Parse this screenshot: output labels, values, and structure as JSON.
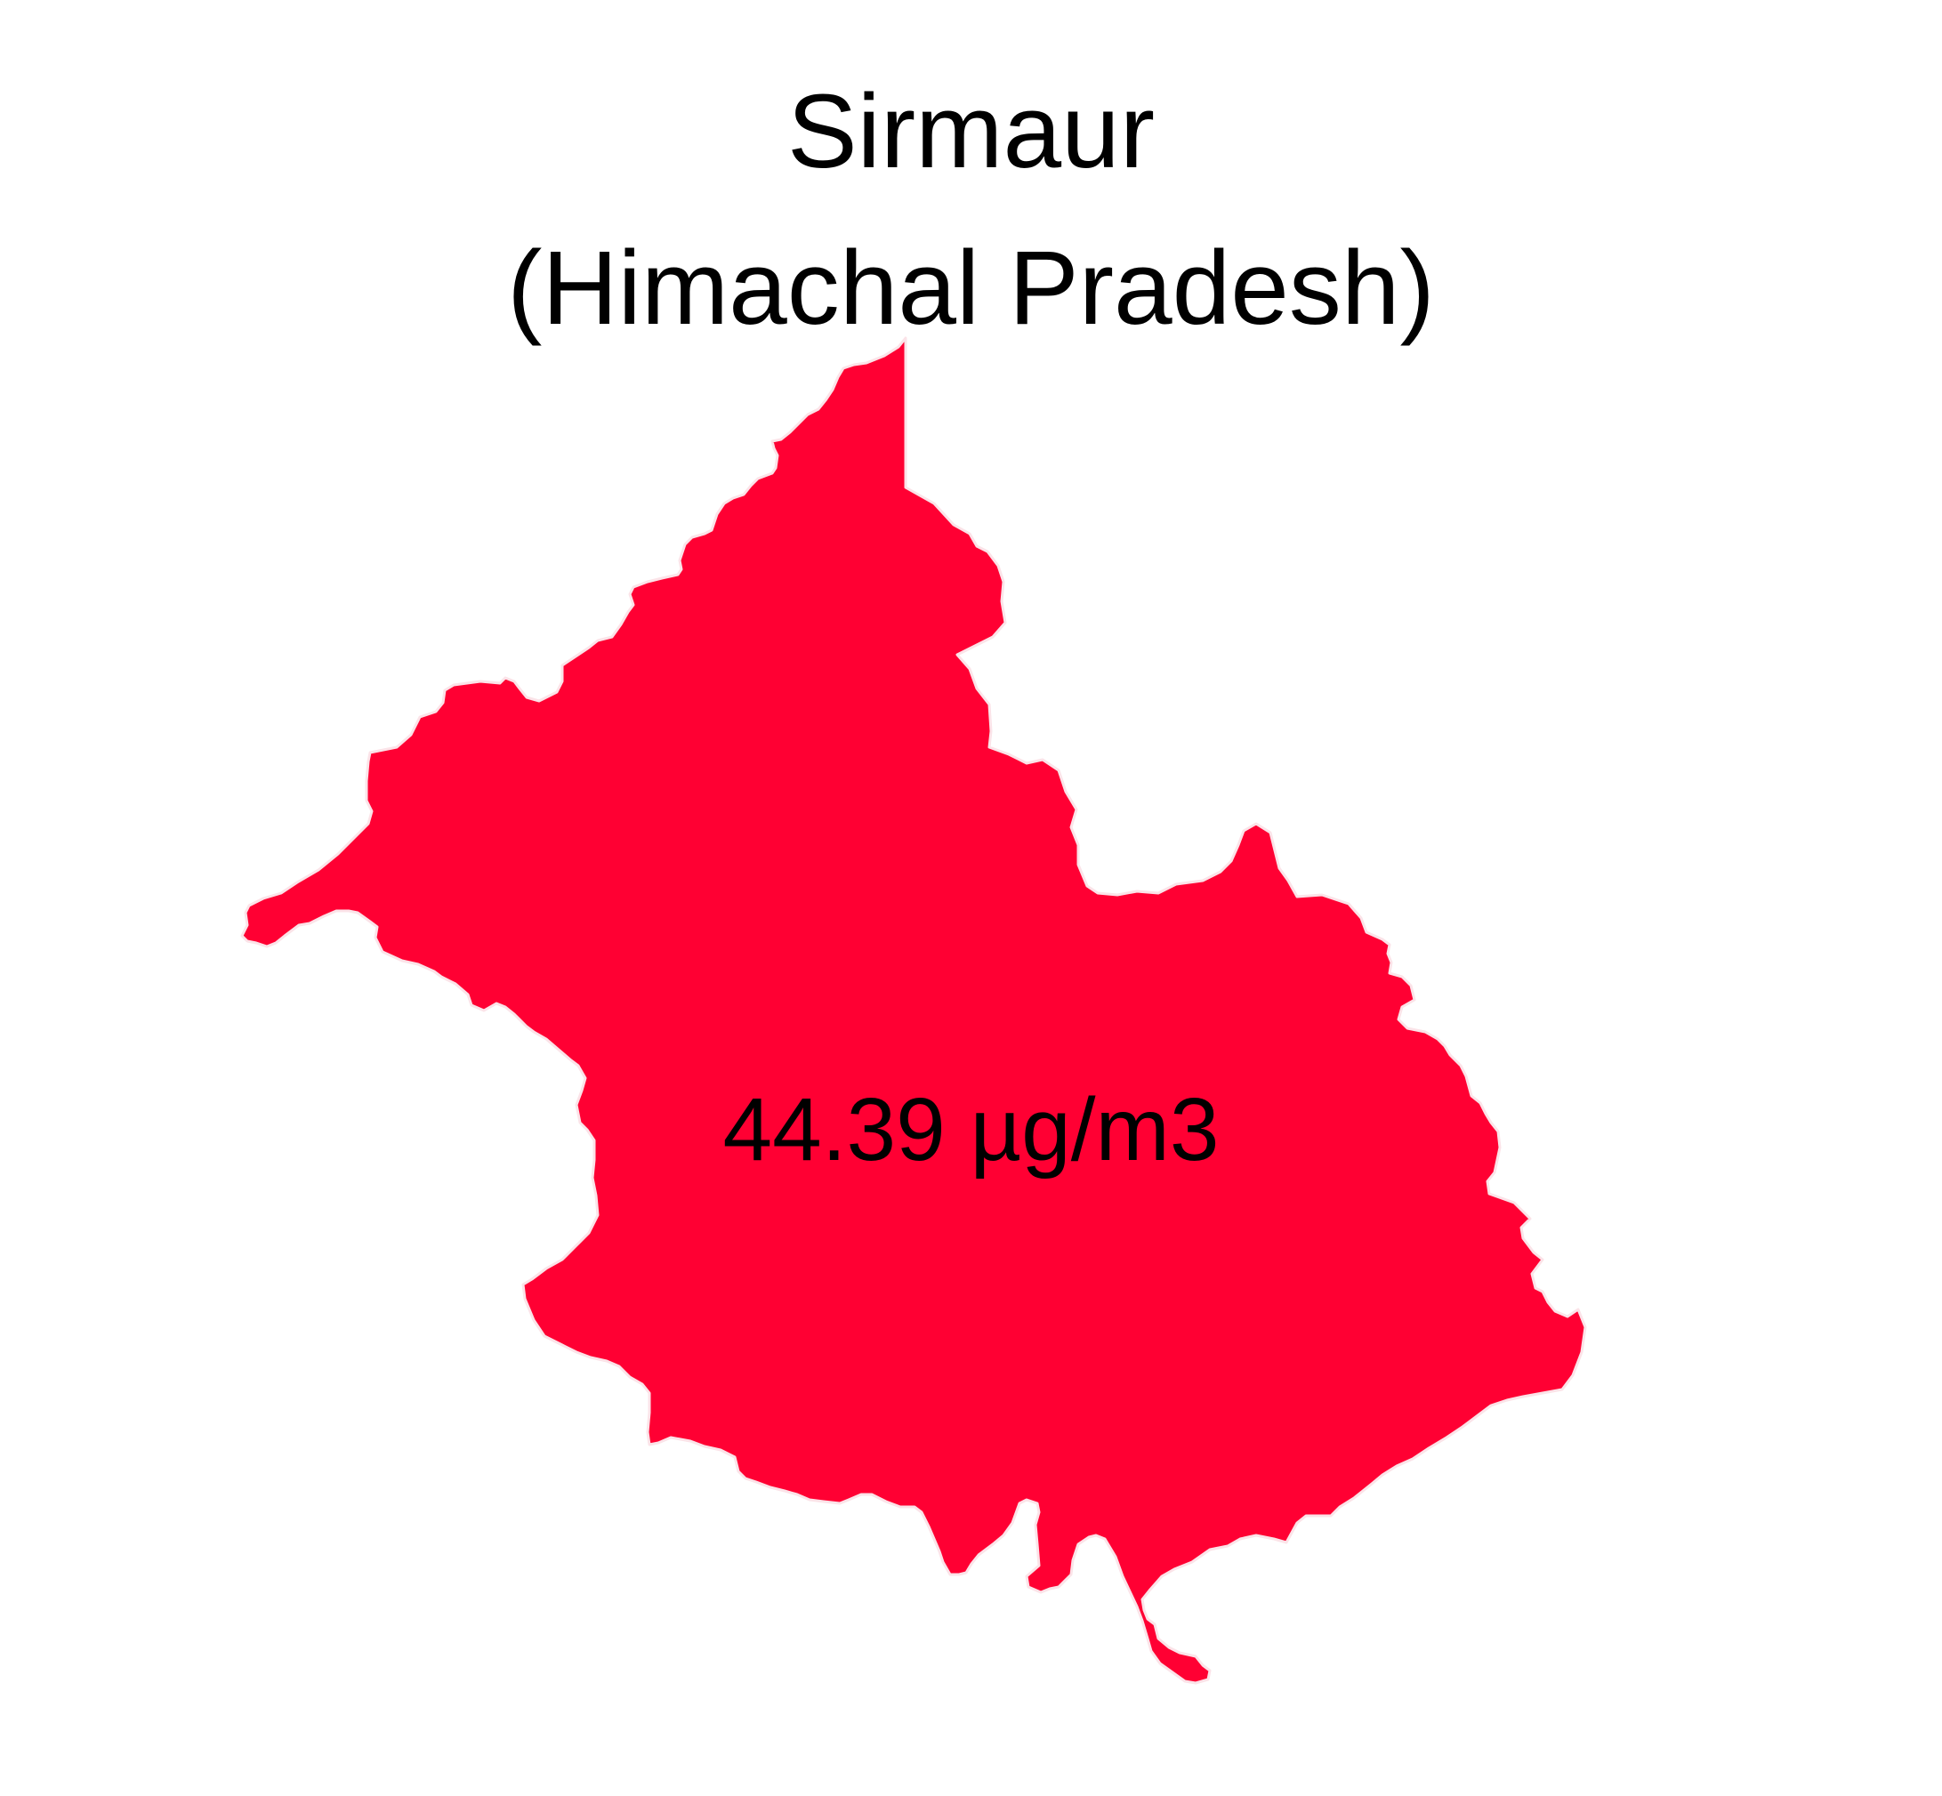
{
  "map": {
    "title": "Sirmaur",
    "subtitle": "(Himachal Pradesh)",
    "region_name": "Sirmaur",
    "value_label": "44.39 µg/m3",
    "value": 44.39,
    "unit": "µg/m3",
    "fill_color": "#ff0033",
    "background_color": "#ffffff"
  }
}
